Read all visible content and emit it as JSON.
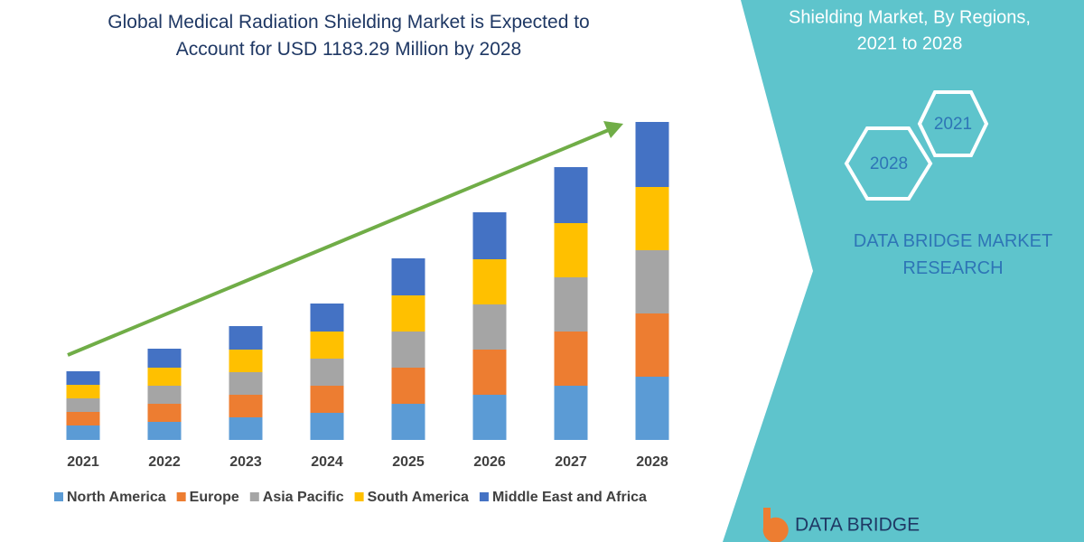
{
  "chart_data": {
    "type": "stacked-bar",
    "title": "Global Medical Radiation Shielding Market is Expected to Account for USD 1183.29 Million by 2028",
    "categories": [
      "2021",
      "2022",
      "2023",
      "2024",
      "2025",
      "2026",
      "2027",
      "2028"
    ],
    "series": [
      {
        "name": "North America",
        "color": "#5b9bd5",
        "values": [
          16,
          20,
          25,
          30,
          40,
          50,
          60,
          70
        ]
      },
      {
        "name": "Europe",
        "color": "#ed7d31",
        "values": [
          15,
          20,
          25,
          30,
          40,
          50,
          60,
          70
        ]
      },
      {
        "name": "Asia Pacific",
        "color": "#a5a5a5",
        "values": [
          15,
          20,
          25,
          30,
          40,
          50,
          60,
          70
        ]
      },
      {
        "name": "South America",
        "color": "#ffc000",
        "values": [
          15,
          20,
          25,
          30,
          40,
          50,
          60,
          70
        ]
      },
      {
        "name": "Middle East and Africa",
        "color": "#4472c4",
        "values": [
          15,
          21,
          26,
          31,
          41,
          52,
          62,
          72
        ]
      }
    ]
  },
  "panel": {
    "subtitle": [
      "Shielding Market, By Regions,",
      "2021 to 2028"
    ],
    "hexagons": [
      "2021",
      "2028"
    ],
    "brand": "DATA BRIDGE MARKET RESEARCH",
    "logo": "DATA BRIDGE"
  }
}
